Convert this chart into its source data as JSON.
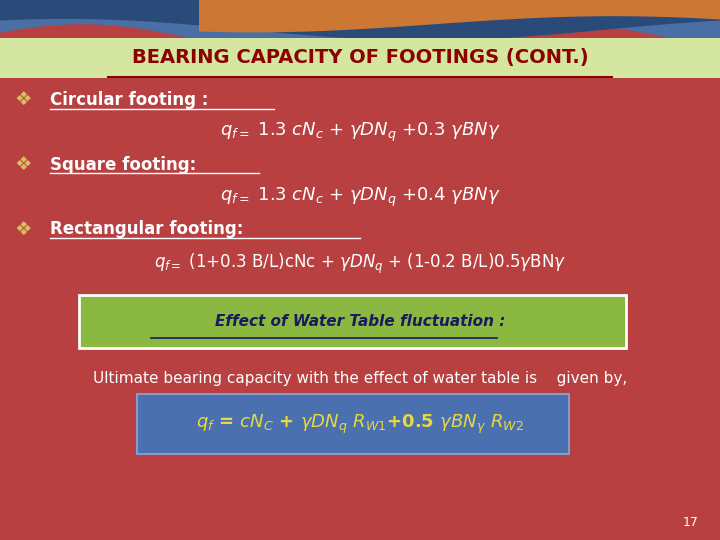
{
  "title": "BEARING CAPACITY OF FOOTINGS (CONT.)",
  "title_color": "#8B0000",
  "title_bg_color": "#d4e6a0",
  "slide_bg_color": "#b84040",
  "bullet_color": "#d4c060",
  "bullet_char": "❖",
  "text_color": "white",
  "green_box_color": "#8ab840",
  "blue_box_color": "#4a70b0",
  "yellow_formula_color": "#e8d840",
  "page_number": "17",
  "circular_label": "Circular footing :",
  "square_label": "Square footing:",
  "rect_label": "Rectangular footing:",
  "water_box_text": "Effect of Water Table fluctuation :",
  "ultimate_text": "Ultimate bearing capacity with the effect of water table is    given by,"
}
